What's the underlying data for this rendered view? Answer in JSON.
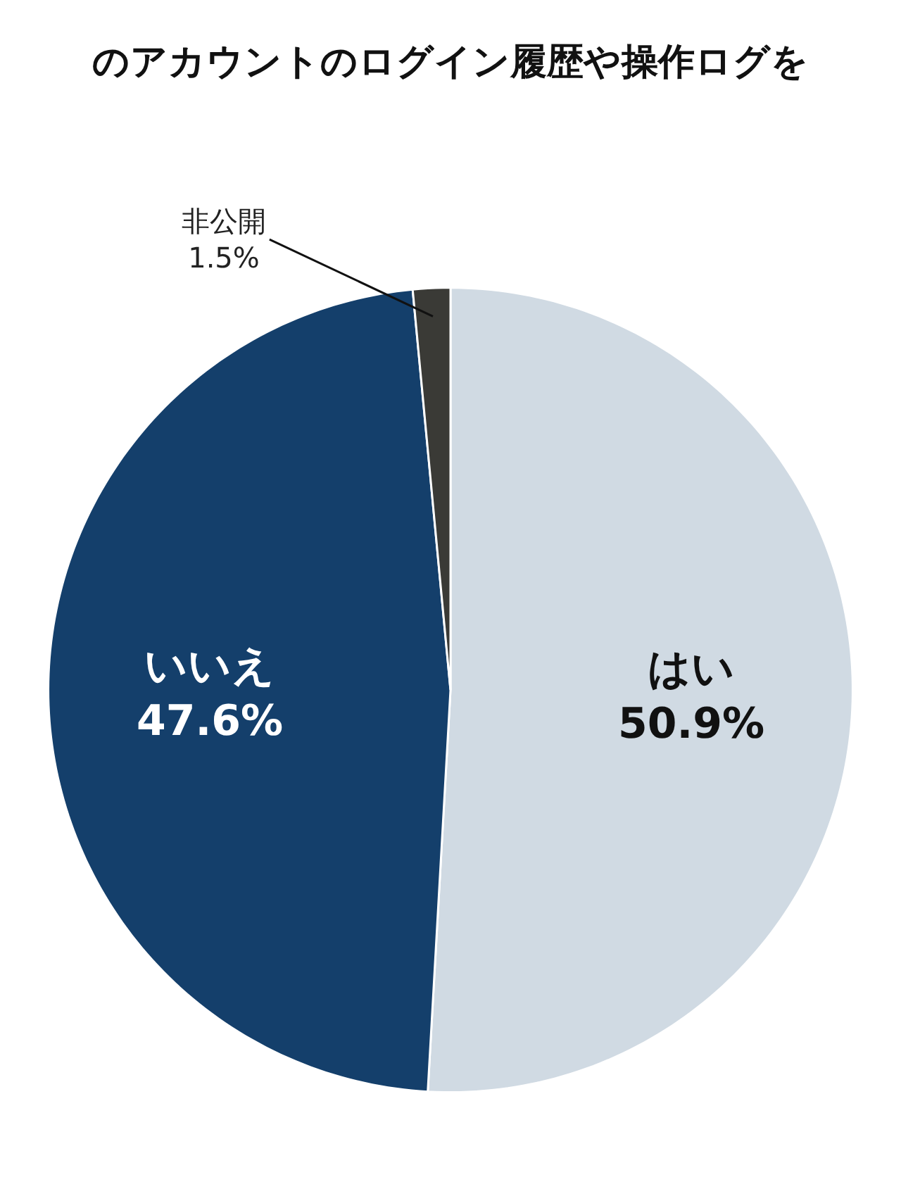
{
  "chart_data": {
    "type": "pie",
    "title": "のアカウントのログイン履歴や操作ログを",
    "categories": [
      "はい",
      "いいえ",
      "非公開"
    ],
    "values": [
      50.9,
      47.6,
      1.5
    ],
    "value_labels": [
      "50.9%",
      "47.6%",
      "1.5%"
    ],
    "colors": [
      "#d0dae3",
      "#143f6b",
      "#3a3a36"
    ]
  }
}
